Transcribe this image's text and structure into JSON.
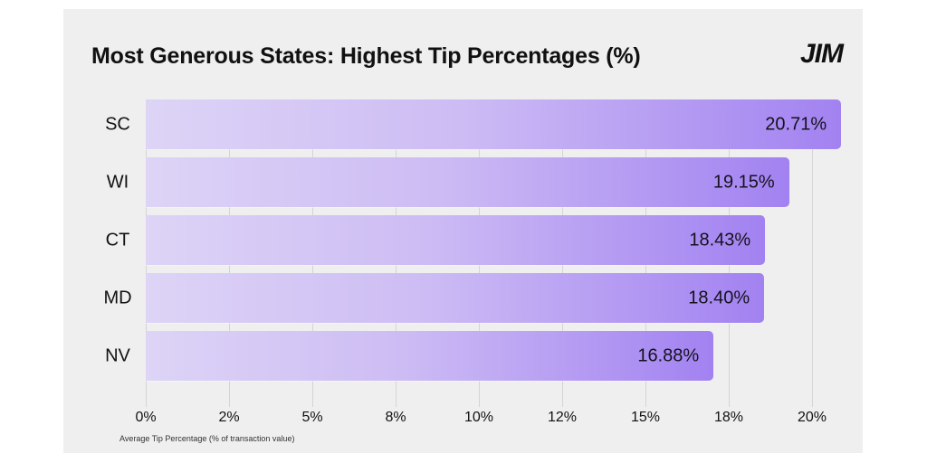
{
  "chart_data": {
    "type": "bar",
    "orientation": "horizontal",
    "title": "Most Generous States: Highest Tip Percentages (%)",
    "xlabel": "Average Tip Percentage (% of transaction value)",
    "ylabel": "",
    "categories": [
      "SC",
      "WI",
      "CT",
      "MD",
      "NV"
    ],
    "values": [
      20.71,
      19.15,
      18.43,
      18.4,
      16.88
    ],
    "value_labels": [
      "20.71%",
      "19.15%",
      "18.43%",
      "18.40%",
      "16.88%"
    ],
    "xlim": [
      0,
      21
    ],
    "x_ticks": [
      0,
      2.5,
      5,
      7.5,
      10,
      12.5,
      15,
      17.5,
      20
    ],
    "x_tick_labels": [
      "0%",
      "2%",
      "5%",
      "8%",
      "10%",
      "12%",
      "15%",
      "18%",
      "20%"
    ],
    "grid": "vertical",
    "legend": "none",
    "bar_gradient": [
      "#ddd4f6",
      "#a282f1"
    ]
  },
  "header": {
    "title": "Most Generous States: Highest Tip Percentages (%)",
    "logo": "JIM"
  },
  "colors": {
    "background": "#efefef",
    "bar_start": "#ddd4f6",
    "bar_end": "#a282f1",
    "gridline": "#d4d4d4",
    "text": "#111111"
  }
}
